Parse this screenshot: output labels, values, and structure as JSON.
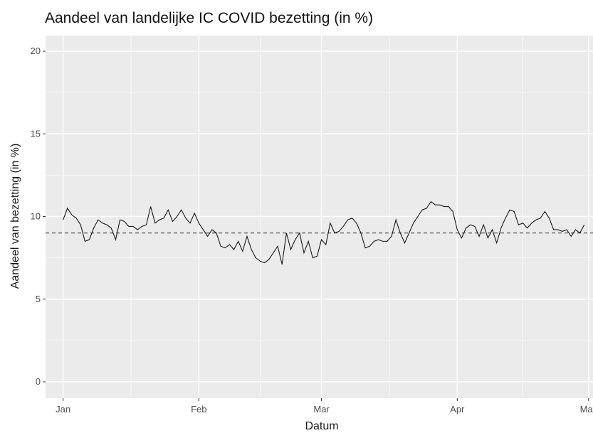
{
  "chart_data": {
    "type": "line",
    "title": "Aandeel van landelijke IC COVID bezetting (in %)",
    "xlabel": "Datum",
    "ylabel": "Aandeel van bezetting (in %)",
    "ylim": [
      0,
      20
    ],
    "yticks": [
      0,
      5,
      10,
      15,
      20
    ],
    "xticks": [
      {
        "date": "2021-01-01",
        "label": "Jan"
      },
      {
        "date": "2021-02-01",
        "label": "Feb"
      },
      {
        "date": "2021-03-01",
        "label": "Mar"
      },
      {
        "date": "2021-04-01",
        "label": "Apr"
      },
      {
        "date": "2021-05-01",
        "label": "May"
      }
    ],
    "xlim": [
      "2020-12-28",
      "2021-05-02"
    ],
    "grid": true,
    "reference_line": {
      "y": 9.0,
      "style": "dashed"
    },
    "colors": {
      "panel": "#ebebeb",
      "grid": "#ffffff",
      "line": "#1a1a1a"
    },
    "series": [
      {
        "x": [
          "2021-01-01",
          "2021-01-02",
          "2021-01-03",
          "2021-01-04",
          "2021-01-05",
          "2021-01-06",
          "2021-01-07",
          "2021-01-08",
          "2021-01-09",
          "2021-01-10",
          "2021-01-11",
          "2021-01-12",
          "2021-01-13",
          "2021-01-14",
          "2021-01-15",
          "2021-01-16",
          "2021-01-17",
          "2021-01-18",
          "2021-01-19",
          "2021-01-20",
          "2021-01-21",
          "2021-01-22",
          "2021-01-23",
          "2021-01-24",
          "2021-01-25",
          "2021-01-26",
          "2021-01-27",
          "2021-01-28",
          "2021-01-29",
          "2021-01-30",
          "2021-01-31",
          "2021-02-01",
          "2021-02-02",
          "2021-02-03",
          "2021-02-04",
          "2021-02-05",
          "2021-02-06",
          "2021-02-07",
          "2021-02-08",
          "2021-02-09",
          "2021-02-10",
          "2021-02-11",
          "2021-02-12",
          "2021-02-13",
          "2021-02-14",
          "2021-02-15",
          "2021-02-16",
          "2021-02-17",
          "2021-02-18",
          "2021-02-19",
          "2021-02-20",
          "2021-02-21",
          "2021-02-22",
          "2021-02-23",
          "2021-02-24",
          "2021-02-25",
          "2021-02-26",
          "2021-02-27",
          "2021-02-28",
          "2021-03-01",
          "2021-03-02",
          "2021-03-03",
          "2021-03-04",
          "2021-03-05",
          "2021-03-06",
          "2021-03-07",
          "2021-03-08",
          "2021-03-09",
          "2021-03-10",
          "2021-03-11",
          "2021-03-12",
          "2021-03-13",
          "2021-03-14",
          "2021-03-15",
          "2021-03-16",
          "2021-03-17",
          "2021-03-18",
          "2021-03-19",
          "2021-03-20",
          "2021-03-21",
          "2021-03-22",
          "2021-03-23",
          "2021-03-24",
          "2021-03-25",
          "2021-03-26",
          "2021-03-27",
          "2021-03-28",
          "2021-03-29",
          "2021-03-30",
          "2021-03-31",
          "2021-04-01",
          "2021-04-02",
          "2021-04-03",
          "2021-04-04",
          "2021-04-05",
          "2021-04-06",
          "2021-04-07",
          "2021-04-08",
          "2021-04-09",
          "2021-04-10",
          "2021-04-11",
          "2021-04-12",
          "2021-04-13",
          "2021-04-14",
          "2021-04-15",
          "2021-04-16",
          "2021-04-17",
          "2021-04-18",
          "2021-04-19",
          "2021-04-20",
          "2021-04-21",
          "2021-04-22",
          "2021-04-23",
          "2021-04-24",
          "2021-04-25",
          "2021-04-26",
          "2021-04-27",
          "2021-04-28",
          "2021-04-29",
          "2021-04-30"
        ],
        "y": [
          9.8,
          10.5,
          10.1,
          9.9,
          9.5,
          8.5,
          8.6,
          9.3,
          9.8,
          9.6,
          9.5,
          9.3,
          8.6,
          9.8,
          9.7,
          9.4,
          9.4,
          9.2,
          9.4,
          9.5,
          10.6,
          9.6,
          9.8,
          9.9,
          10.4,
          9.7,
          10.0,
          10.4,
          9.9,
          9.6,
          10.2,
          9.6,
          9.2,
          8.8,
          9.2,
          9.0,
          8.2,
          8.1,
          8.3,
          8.0,
          8.5,
          7.9,
          8.8,
          8.0,
          7.5,
          7.3,
          7.2,
          7.4,
          7.8,
          8.2,
          7.1,
          9.0,
          8.0,
          8.6,
          9.0,
          7.8,
          8.5,
          7.5,
          7.6,
          8.6,
          8.3,
          9.6,
          9.0,
          9.1,
          9.4,
          9.8,
          9.9,
          9.6,
          9.0,
          8.1,
          8.2,
          8.5,
          8.6,
          8.5,
          8.5,
          8.8,
          9.8,
          9.0,
          8.4,
          9.0,
          9.6,
          10.0,
          10.4,
          10.5,
          10.9,
          10.7,
          10.7,
          10.6,
          10.6,
          10.3,
          9.2,
          8.7,
          9.3,
          9.5,
          9.4,
          8.8,
          9.5,
          8.7,
          9.2,
          8.4,
          9.3,
          9.9,
          10.4,
          10.3,
          9.5,
          9.6,
          9.3,
          9.6,
          9.8,
          9.9,
          10.3,
          9.9,
          9.2,
          9.2,
          9.1,
          9.2,
          8.8,
          9.2,
          9.0,
          9.5
        ]
      }
    ]
  }
}
